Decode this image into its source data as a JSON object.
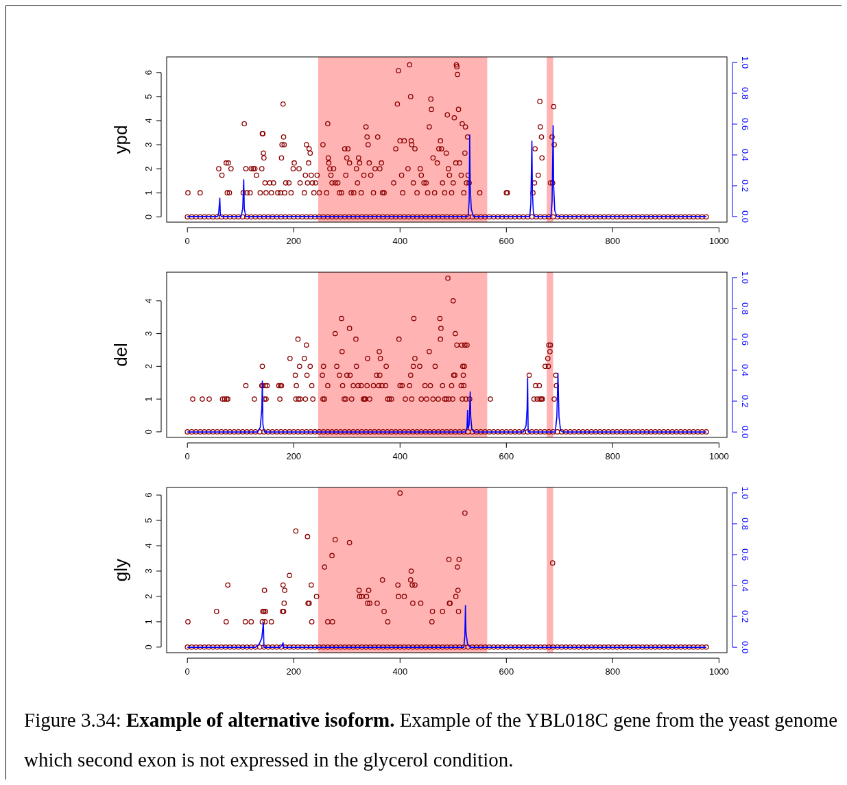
{
  "chart_data": [
    {
      "type": "scatter",
      "ylabel": "ypd",
      "xlim": [
        -39,
        1015
      ],
      "ylim": [
        -0.22,
        6.65
      ],
      "xticks": [
        0,
        200,
        400,
        600,
        800,
        1000
      ],
      "yticks": [
        0,
        1,
        2,
        3,
        4,
        5,
        6
      ],
      "y2lim": [
        -0.036,
        1.036
      ],
      "y2ticks": [
        {
          "value": 0,
          "label": "0.0"
        },
        {
          "value": 0.2,
          "label": "0.2"
        },
        {
          "value": 0.4,
          "label": "0.4"
        },
        {
          "value": 0.6,
          "label": "0.6"
        },
        {
          "value": 0.8,
          "label": "0.8"
        },
        {
          "value": 1,
          "label": "1.0"
        }
      ],
      "marker": "circle",
      "bands": [
        {
          "axis": "x",
          "from": 246,
          "to": 564,
          "color": "#ffb3b3"
        },
        {
          "axis": "x",
          "from": 676,
          "to": 688,
          "color": "#ffb3b3"
        }
      ],
      "series": [
        {
          "type": "scatter",
          "color": "#8b0000",
          "x": [
            0,
            8,
            16,
            24,
            32,
            40,
            48,
            56,
            64,
            72,
            80,
            88,
            96,
            104,
            112,
            120,
            128,
            136,
            144,
            152,
            160,
            168,
            176,
            184,
            192,
            200,
            208,
            216,
            224,
            232,
            240,
            248,
            256,
            264,
            272,
            280,
            288,
            296,
            304,
            312,
            320,
            328,
            336,
            344,
            352,
            360,
            368,
            376,
            384,
            392,
            400,
            408,
            416,
            424,
            432,
            440,
            448,
            456,
            464,
            472,
            480,
            488,
            496,
            504,
            512,
            520,
            528,
            536,
            544,
            552,
            560,
            568,
            576,
            584,
            592,
            600,
            608,
            616,
            624,
            632,
            640,
            648,
            656,
            664,
            672,
            680,
            688,
            696,
            704,
            712,
            720,
            728,
            736,
            744,
            752,
            760,
            768,
            776,
            784,
            792,
            800,
            808,
            816,
            824,
            832,
            840,
            848,
            856,
            864,
            872,
            880,
            888,
            896,
            904,
            912,
            920,
            928,
            936,
            944,
            952,
            960,
            968,
            976
          ],
          "values": [
            0,
            0,
            0,
            0,
            0,
            0,
            0,
            0,
            0,
            0,
            0,
            0,
            0,
            0,
            0,
            0,
            0,
            0,
            0,
            0,
            0,
            0,
            0,
            0,
            0,
            0,
            0,
            0,
            0,
            0,
            0,
            0,
            0,
            0,
            0,
            0,
            0,
            0,
            0,
            0,
            0,
            0,
            0,
            0,
            0,
            0,
            0,
            0,
            0,
            0,
            0,
            0,
            0,
            0,
            0,
            0,
            0,
            0,
            0,
            0,
            0,
            0,
            0,
            0,
            0,
            0,
            0,
            0,
            0,
            0,
            0,
            0,
            0,
            0,
            0,
            0,
            0,
            0,
            0,
            0,
            0,
            0,
            0,
            0,
            0,
            0,
            0,
            0,
            0,
            0,
            0,
            0,
            0,
            0,
            0,
            0,
            0,
            0,
            0,
            0,
            0,
            0,
            0,
            0,
            0,
            0,
            0,
            0,
            0,
            0,
            0,
            0,
            0,
            0,
            0,
            0,
            0,
            0,
            0,
            0,
            0,
            0,
            0
          ]
        },
        {
          "type": "scatter",
          "color": "#8b0000",
          "x": [
            1,
            24,
            59,
            65,
            73,
            77,
            75,
            79,
            82,
            105,
            107,
            110,
            112,
            118,
            120,
            124,
            127,
            130,
            137,
            140,
            141,
            142,
            143,
            144,
            146,
            148,
            155,
            158,
            162,
            170,
            175,
            177,
            178,
            181,
            180,
            182,
            183,
            185,
            191,
            195,
            199,
            201,
            210,
            212,
            220,
            222,
            224,
            226,
            228,
            229,
            231,
            233,
            235,
            238,
            241,
            244,
            248,
            255,
            262,
            264,
            265,
            266,
            268,
            270,
            272,
            275,
            278,
            283,
            286,
            290,
            296,
            298,
            300,
            302,
            305,
            308,
            313,
            318,
            320,
            322,
            324,
            327,
            332,
            336,
            338,
            340,
            342,
            345,
            350,
            353,
            358,
            362,
            365,
            367,
            370,
            388,
            392,
            395,
            397,
            400,
            403,
            405,
            408,
            415,
            418,
            420,
            421,
            422,
            425,
            428,
            432,
            438,
            440,
            445,
            449,
            452,
            455,
            458,
            459,
            462,
            465,
            470,
            473,
            476,
            478,
            480,
            484,
            487,
            489,
            491,
            493,
            497,
            500,
            502,
            505,
            506,
            507,
            508,
            510,
            512,
            515,
            517,
            520,
            522,
            523,
            525,
            527,
            528,
            530,
            550,
            600,
            602,
            650,
            653,
            654,
            660,
            663,
            664,
            666,
            667,
            683,
            686,
            687,
            689,
            690
          ],
          "values": [
            1,
            1,
            2,
            1.73,
            2.24,
            2.24,
            1,
            1,
            2,
            1,
            3.87,
            2,
            1,
            1,
            2,
            2,
            2,
            1.73,
            1,
            2,
            3.46,
            3.46,
            2.65,
            2.45,
            1.41,
            1,
            1.41,
            1,
            1.41,
            1,
            1,
            2.45,
            3,
            3.32,
            4.69,
            3,
            1,
            1.41,
            1.41,
            1,
            2,
            2.24,
            2,
            1.41,
            1,
            1.73,
            3,
            1.41,
            2.24,
            2.83,
            2.65,
            1.73,
            1.41,
            1,
            1.41,
            1.73,
            1,
            3,
            1,
            3.87,
            2.45,
            2.24,
            2,
            1.73,
            1.41,
            2,
            1.41,
            1.41,
            1,
            1,
            2.83,
            1.73,
            2.45,
            2.83,
            2.24,
            1,
            1,
            2,
            1.41,
            2.45,
            2.24,
            1,
            1.73,
            3.74,
            3.32,
            3,
            2.24,
            1.73,
            1,
            2,
            3.32,
            2,
            2.24,
            1,
            1,
            1.41,
            2.83,
            4.69,
            6.08,
            3.16,
            1.73,
            1,
            3.16,
            2,
            6.32,
            5,
            3.16,
            3,
            1.41,
            2.83,
            1,
            2,
            1.73,
            1.41,
            1.41,
            1,
            3.74,
            4.9,
            4.47,
            2.45,
            1,
            2.24,
            2.83,
            3.16,
            2.83,
            1.41,
            1,
            2.65,
            4.24,
            2,
            1.73,
            1,
            1.41,
            4.12,
            2.24,
            6.32,
            6.24,
            5.92,
            4.47,
            2.24,
            1.73,
            3.87,
            1,
            2.65,
            3.74,
            1.41,
            3.32,
            1.73,
            1.41,
            1,
            1,
            1,
            1,
            1.41,
            2.83,
            1.73,
            4.8,
            3.74,
            3.32,
            2.45,
            1.41,
            3.32,
            1.41,
            4.58,
            3
          ]
        },
        {
          "type": "line",
          "axis": "y2",
          "marker": "none",
          "color": "#0000ff",
          "x": [
            0,
            57,
            59,
            61,
            62,
            64,
            101,
            104,
            106,
            107,
            110,
            528,
            530,
            531,
            532,
            534,
            538,
            644,
            646,
            648,
            649,
            651,
            654,
            684,
            686,
            688,
            689,
            691,
            695,
            976
          ],
          "values": [
            0,
            0,
            0.03,
            0.12,
            0.01,
            0,
            0,
            0.05,
            0.24,
            0.05,
            0,
            0,
            0.1,
            0.53,
            0.2,
            0.05,
            0,
            0,
            0.08,
            0.49,
            0.15,
            0.02,
            0,
            0,
            0.1,
            0.59,
            0.2,
            0.04,
            0,
            0
          ]
        }
      ]
    },
    {
      "type": "scatter",
      "ylabel": "del",
      "xlim": [
        -39,
        1015
      ],
      "ylim": [
        -0.17,
        4.875
      ],
      "xticks": [
        0,
        200,
        400,
        600,
        800,
        1000
      ],
      "yticks": [
        0,
        1,
        2,
        3,
        4
      ],
      "y2lim": [
        -0.035,
        1.035
      ],
      "y2ticks": [
        {
          "value": 0,
          "label": "0.0"
        },
        {
          "value": 0.2,
          "label": "0.2"
        },
        {
          "value": 0.4,
          "label": "0.4"
        },
        {
          "value": 0.6,
          "label": "0.6"
        },
        {
          "value": 0.8,
          "label": "0.8"
        },
        {
          "value": 1,
          "label": "1.0"
        }
      ],
      "marker": "circle",
      "bands": [
        {
          "axis": "x",
          "from": 246,
          "to": 564,
          "color": "#ffb3b3"
        },
        {
          "axis": "x",
          "from": 676,
          "to": 688,
          "color": "#ffb3b3"
        }
      ],
      "series": [
        {
          "type": "scatter",
          "color": "#8b0000",
          "x": [
            0,
            8,
            16,
            24,
            32,
            40,
            48,
            56,
            64,
            72,
            80,
            88,
            96,
            104,
            112,
            120,
            128,
            136,
            144,
            152,
            160,
            168,
            176,
            184,
            192,
            200,
            208,
            216,
            224,
            232,
            240,
            248,
            256,
            264,
            272,
            280,
            288,
            296,
            304,
            312,
            320,
            328,
            336,
            344,
            352,
            360,
            368,
            376,
            384,
            392,
            400,
            408,
            416,
            424,
            432,
            440,
            448,
            456,
            464,
            472,
            480,
            488,
            496,
            504,
            512,
            520,
            528,
            536,
            544,
            552,
            560,
            568,
            576,
            584,
            592,
            600,
            608,
            616,
            624,
            632,
            640,
            648,
            656,
            664,
            672,
            680,
            688,
            696,
            704,
            712,
            720,
            728,
            736,
            744,
            752,
            760,
            768,
            776,
            784,
            792,
            800,
            808,
            816,
            824,
            832,
            840,
            848,
            856,
            864,
            872,
            880,
            888,
            896,
            904,
            912,
            920,
            928,
            936,
            944,
            952,
            960,
            968,
            976
          ],
          "values": [
            0,
            0,
            0,
            0,
            0,
            0,
            0,
            0,
            0,
            0,
            0,
            0,
            0,
            0,
            0,
            0,
            0,
            0,
            0,
            0,
            0,
            0,
            0,
            0,
            0,
            0,
            0,
            0,
            0,
            0,
            0,
            0,
            0,
            0,
            0,
            0,
            0,
            0,
            0,
            0,
            0,
            0,
            0,
            0,
            0,
            0,
            0,
            0,
            0,
            0,
            0,
            0,
            0,
            0,
            0,
            0,
            0,
            0,
            0,
            0,
            0,
            0,
            0,
            0,
            0,
            0,
            0,
            0,
            0,
            0,
            0,
            0,
            0,
            0,
            0,
            0,
            0,
            0,
            0,
            0,
            0,
            0,
            0,
            0,
            0,
            0,
            0,
            0,
            0,
            0,
            0,
            0,
            0,
            0,
            0,
            0,
            0,
            0,
            0,
            0,
            0,
            0,
            0,
            0,
            0,
            0,
            0,
            0,
            0,
            0,
            0,
            0,
            0,
            0,
            0,
            0,
            0,
            0,
            0,
            0,
            0,
            0,
            0
          ]
        },
        {
          "type": "scatter",
          "color": "#8b0000",
          "x": [
            10,
            28,
            41,
            66,
            70,
            74,
            76,
            110,
            126,
            140,
            141,
            142,
            145,
            147,
            148,
            150,
            172,
            174,
            175,
            177,
            193,
            203,
            204,
            205,
            208,
            209,
            211,
            212,
            220,
            222,
            224,
            225,
            231,
            234,
            236,
            254,
            256,
            255,
            258,
            264,
            278,
            281,
            286,
            290,
            291,
            292,
            295,
            298,
            300,
            305,
            306,
            309,
            312,
            317,
            318,
            321,
            327,
            331,
            333,
            335,
            338,
            339,
            343,
            350,
            356,
            362,
            361,
            363,
            360,
            366,
            374,
            373,
            377,
            380,
            384,
            398,
            400,
            404,
            410,
            418,
            420,
            422,
            425,
            426,
            428,
            437,
            440,
            447,
            450,
            455,
            457,
            462,
            466,
            472,
            475,
            476,
            477,
            480,
            484,
            487,
            490,
            492,
            497,
            499,
            500,
            501,
            503,
            504,
            507,
            515,
            516,
            517,
            518,
            519,
            520,
            521,
            522,
            524,
            526,
            531,
            570,
            643,
            652,
            655,
            658,
            662,
            663,
            666,
            668,
            673,
            678,
            679,
            680,
            682,
            683,
            690,
            693,
            694
          ],
          "values": [
            1,
            1,
            1,
            1,
            1,
            1,
            1,
            1.41,
            1,
            1.41,
            2,
            1.41,
            1,
            1.41,
            1,
            1.41,
            1.41,
            1,
            1.41,
            1.41,
            2.24,
            1.73,
            1,
            1.41,
            2.83,
            1,
            2,
            1,
            2.24,
            1,
            2.65,
            1.73,
            2,
            1.41,
            1,
            1.73,
            2,
            1,
            1,
            1.41,
            3,
            2,
            1.73,
            3.46,
            2.45,
            1.41,
            1,
            1,
            1.73,
            3.16,
            1.73,
            1,
            1.41,
            2.83,
            2,
            1.41,
            1.41,
            1,
            1,
            1,
            1.41,
            2.24,
            1,
            1.41,
            1.73,
            1.73,
            2.45,
            2.24,
            1.41,
            1.41,
            2,
            1.41,
            1,
            1,
            1,
            2.83,
            1.41,
            1.41,
            1,
            1.41,
            1.73,
            1,
            2,
            3.46,
            2.24,
            2,
            1,
            1.41,
            1,
            2.45,
            1.41,
            1,
            2,
            1,
            3.46,
            2.83,
            3.16,
            1.41,
            1,
            1,
            4.69,
            1,
            1.41,
            1,
            4,
            1.73,
            1.73,
            3,
            2.65,
            1.41,
            2.65,
            1,
            2,
            1.73,
            1.41,
            2,
            2.65,
            1,
            2.65,
            1,
            1,
            1.73,
            1,
            1.41,
            1,
            1.41,
            1,
            1,
            1,
            2,
            2.24,
            2,
            2.65,
            2.45,
            2.65,
            1,
            1.73,
            1.41
          ]
        },
        {
          "type": "line",
          "axis": "y2",
          "marker": "none",
          "color": "#0000ff",
          "x": [
            0,
            132,
            137,
            140,
            141,
            142,
            145,
            523,
            526,
            527,
            528,
            530,
            532,
            533,
            535,
            539,
            632,
            637,
            639,
            640,
            641,
            645,
            692,
            695,
            697,
            699,
            702,
            706,
            976
          ],
          "values": [
            0,
            0,
            0.03,
            0.15,
            0.33,
            0.05,
            0,
            0,
            0.03,
            0.14,
            0.02,
            0.05,
            0.26,
            0.1,
            0.02,
            0,
            0,
            0.04,
            0.15,
            0.35,
            0,
            0,
            0,
            0.1,
            0.38,
            0.1,
            0.01,
            0,
            0
          ]
        }
      ]
    },
    {
      "type": "scatter",
      "ylabel": "gly",
      "xlim": [
        -39,
        1015
      ],
      "ylim": [
        -0.22,
        6.3
      ],
      "xticks": [
        0,
        200,
        400,
        600,
        800,
        1000
      ],
      "yticks": [
        0,
        1,
        2,
        3,
        4,
        5,
        6
      ],
      "y2lim": [
        -0.035,
        1.035
      ],
      "y2ticks": [
        {
          "value": 0,
          "label": "0.0"
        },
        {
          "value": 0.2,
          "label": "0.2"
        },
        {
          "value": 0.4,
          "label": "0.4"
        },
        {
          "value": 0.6,
          "label": "0.6"
        },
        {
          "value": 0.8,
          "label": "0.8"
        },
        {
          "value": 1,
          "label": "1.0"
        }
      ],
      "marker": "circle",
      "bands": [
        {
          "axis": "x",
          "from": 246,
          "to": 564,
          "color": "#ffb3b3"
        },
        {
          "axis": "x",
          "from": 676,
          "to": 688,
          "color": "#ffb3b3"
        }
      ],
      "annotations": [
        "Figure 3.34:",
        "Example of alternative isoform.",
        "Example of the YBL018C gene from the yeast genome which second exon is not expressed in the glycerol condition."
      ],
      "series": [
        {
          "type": "scatter",
          "color": "#8b0000",
          "x": [
            0,
            8,
            16,
            24,
            32,
            40,
            48,
            56,
            64,
            72,
            80,
            88,
            96,
            104,
            112,
            120,
            128,
            136,
            144,
            152,
            160,
            168,
            176,
            184,
            192,
            200,
            208,
            216,
            224,
            232,
            240,
            248,
            256,
            264,
            272,
            280,
            288,
            296,
            304,
            312,
            320,
            328,
            336,
            344,
            352,
            360,
            368,
            376,
            384,
            392,
            400,
            408,
            416,
            424,
            432,
            440,
            448,
            456,
            464,
            472,
            480,
            488,
            496,
            504,
            512,
            520,
            528,
            536,
            544,
            552,
            560,
            568,
            576,
            584,
            592,
            600,
            608,
            616,
            624,
            632,
            640,
            648,
            656,
            664,
            672,
            680,
            688,
            696,
            704,
            712,
            720,
            728,
            736,
            744,
            752,
            760,
            768,
            776,
            784,
            792,
            800,
            808,
            816,
            824,
            832,
            840,
            848,
            856,
            864,
            872,
            880,
            888,
            896,
            904,
            912,
            920,
            928,
            936,
            944,
            952,
            960,
            968,
            976
          ],
          "values": [
            0,
            0,
            0,
            0,
            0,
            0,
            0,
            0,
            0,
            0,
            0,
            0,
            0,
            0,
            0,
            0,
            0,
            0,
            0,
            0,
            0,
            0,
            0,
            0,
            0,
            0,
            0,
            0,
            0,
            0,
            0,
            0,
            0,
            0,
            0,
            0,
            0,
            0,
            0,
            0,
            0,
            0,
            0,
            0,
            0,
            0,
            0,
            0,
            0,
            0,
            0,
            0,
            0,
            0,
            0,
            0,
            0,
            0,
            0,
            0,
            0,
            0,
            0,
            0,
            0,
            0,
            0,
            0,
            0,
            0,
            0,
            0,
            0,
            0,
            0,
            0,
            0,
            0,
            0,
            0,
            0,
            0,
            0,
            0,
            0,
            0,
            0,
            0,
            0,
            0,
            0,
            0,
            0,
            0,
            0,
            0,
            0,
            0,
            0,
            0,
            0,
            0,
            0,
            0,
            0,
            0,
            0,
            0,
            0,
            0,
            0,
            0,
            0,
            0,
            0,
            0,
            0,
            0,
            0,
            0,
            0,
            0,
            0
          ]
        },
        {
          "type": "scatter",
          "color": "#8b0000",
          "x": [
            1,
            55,
            73,
            76,
            109,
            120,
            141,
            142,
            144,
            145,
            146,
            147,
            158,
            179,
            180,
            181,
            182,
            183,
            192,
            204,
            226,
            227,
            229,
            233,
            234,
            243,
            258,
            264,
            272,
            273,
            278,
            305,
            323,
            324,
            328,
            337,
            339,
            341,
            343,
            357,
            367,
            370,
            377,
            396,
            397,
            400,
            408,
            420,
            421,
            423,
            424,
            428,
            439,
            460,
            461,
            480,
            492,
            493,
            494,
            505,
            508,
            509,
            510,
            511,
            522,
            687
          ],
          "values": [
            1,
            1.41,
            1,
            2.45,
            1,
            1,
            1,
            1.41,
            1.41,
            2.24,
            1,
            1.41,
            1,
            1.41,
            2.45,
            1.41,
            1.73,
            2.24,
            2.83,
            4.58,
            4.36,
            1.73,
            1.73,
            2.45,
            1,
            2,
            3.16,
            1,
            3.61,
            1,
            4.24,
            4.12,
            2.24,
            2,
            2,
            2,
            1.73,
            2.24,
            1.73,
            1.73,
            2.65,
            1.41,
            1,
            2.45,
            2,
            6.08,
            2,
            2.65,
            3,
            2.45,
            1.73,
            2.45,
            1.73,
            1,
            1.41,
            1.41,
            3.46,
            1.73,
            1.73,
            2,
            3.16,
            2.24,
            1.41,
            3.46,
            5.29,
            3.32
          ]
        },
        {
          "type": "line",
          "axis": "y2",
          "marker": "none",
          "color": "#0000ff",
          "x": [
            0,
            128,
            135,
            140,
            143,
            144,
            148,
            175,
            179,
            180,
            181,
            520,
            522,
            523,
            524,
            527,
            532,
            976
          ],
          "values": [
            0,
            0,
            0.02,
            0.06,
            0.16,
            0,
            0,
            0,
            0.02,
            0.03,
            0,
            0,
            0.08,
            0.27,
            0.1,
            0.02,
            0,
            0
          ]
        }
      ]
    }
  ]
}
